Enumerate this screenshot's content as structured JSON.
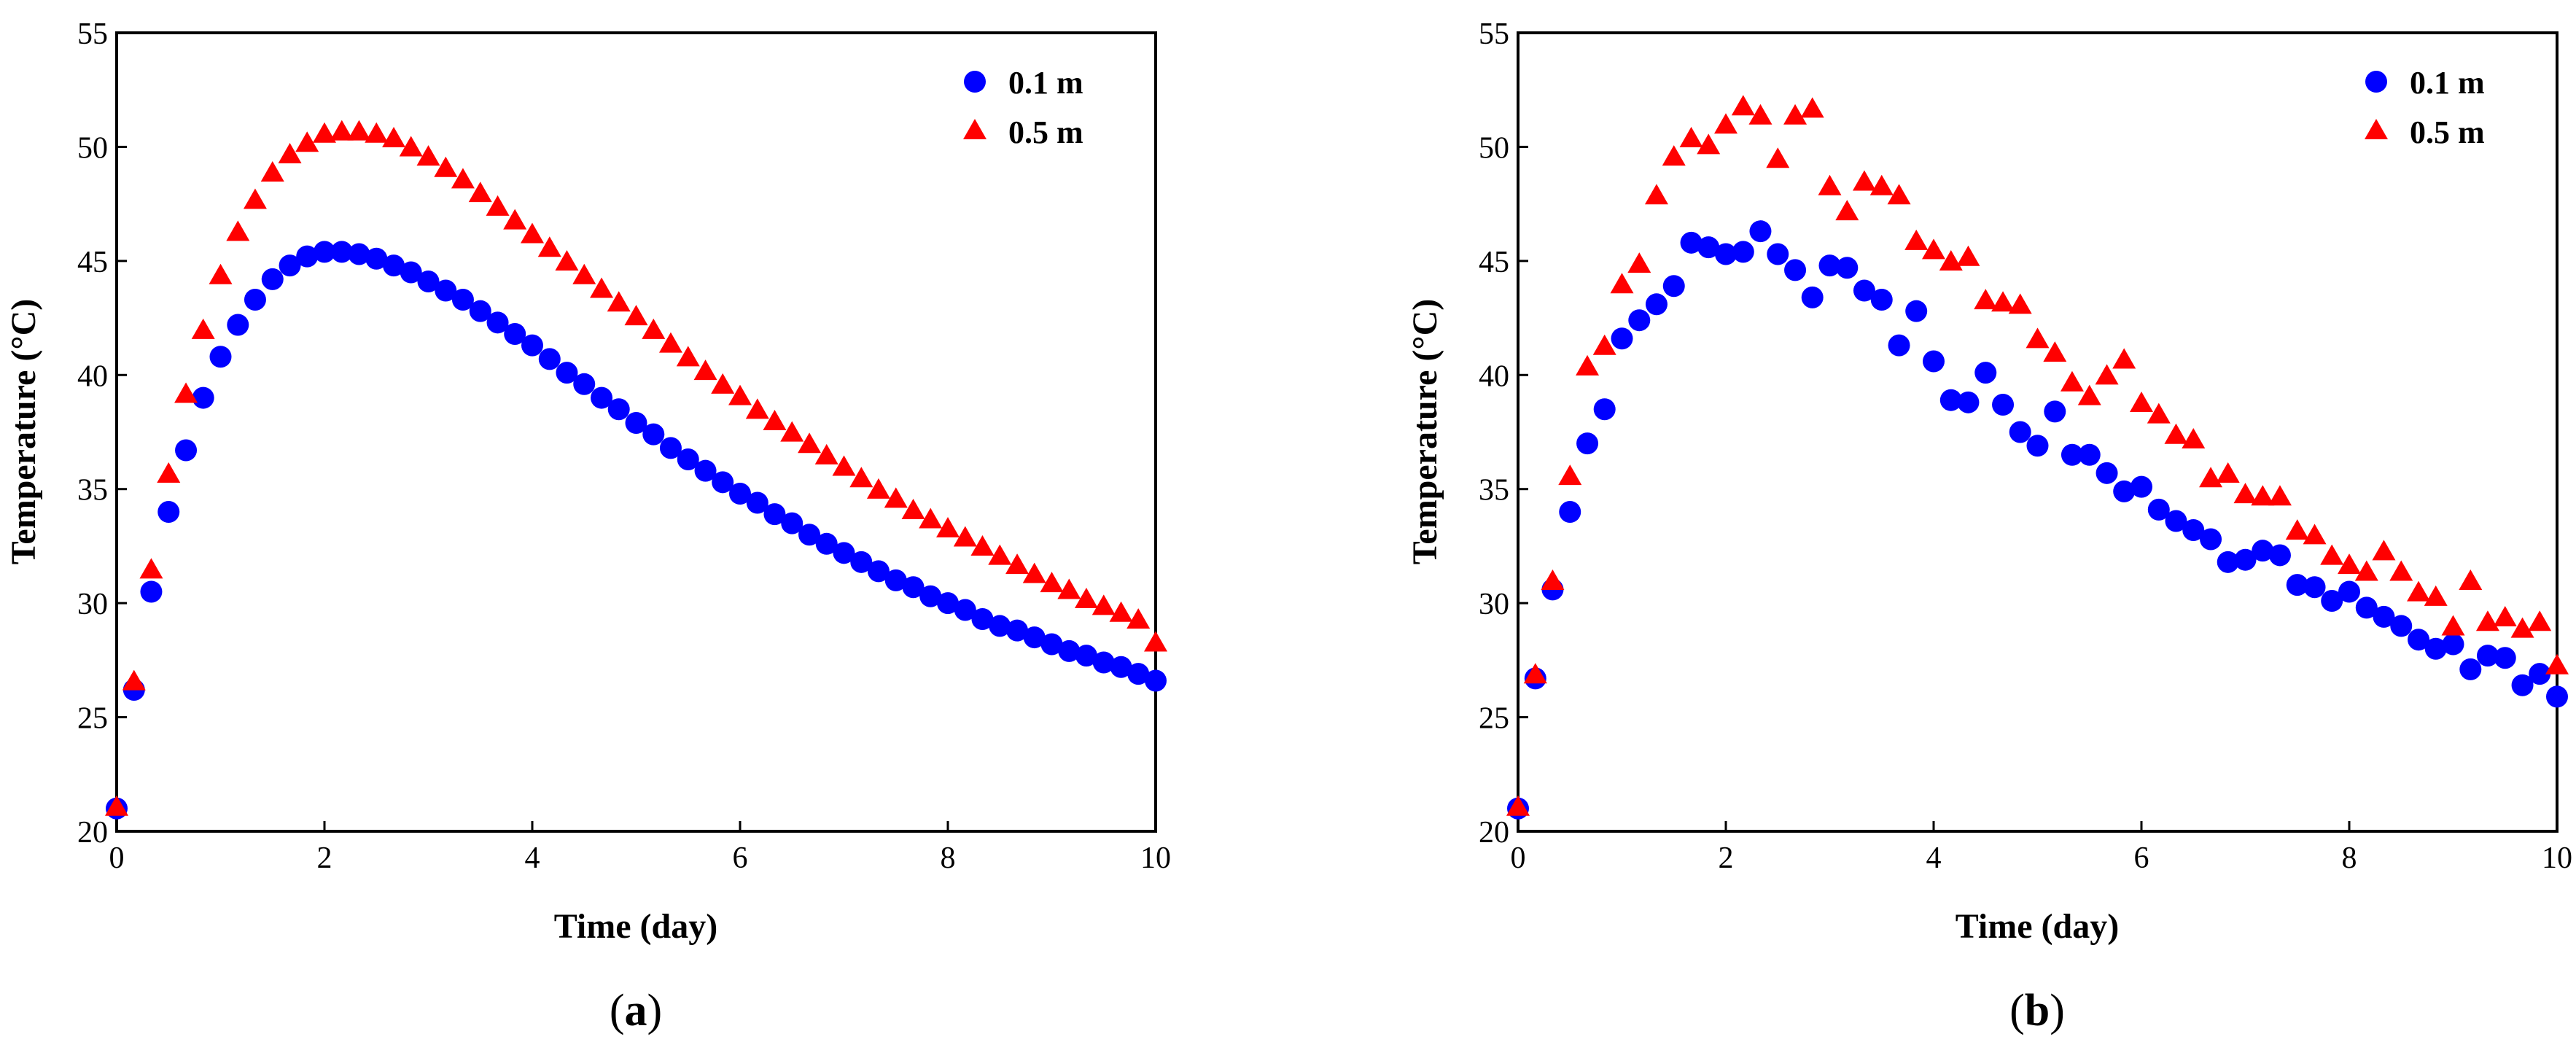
{
  "colors": {
    "series_0": "#0000ff",
    "series_1": "#ff0000",
    "axis": "#000000"
  },
  "chart_data": [
    {
      "type": "scatter",
      "panel_label": "a",
      "xlabel": "Time (day)",
      "ylabel": "Temperature (°C)",
      "xlim": [
        0,
        10
      ],
      "ylim": [
        20,
        55
      ],
      "xticks": [
        0,
        2,
        4,
        6,
        8,
        10
      ],
      "yticks": [
        20,
        25,
        30,
        35,
        40,
        45,
        50,
        55
      ],
      "grid": false,
      "legend_position": "top-right",
      "series": [
        {
          "name": "0.1 m",
          "marker": "circle",
          "color": "#0000ff",
          "x": [
            0,
            0.167,
            0.333,
            0.5,
            0.667,
            0.833,
            1.0,
            1.167,
            1.333,
            1.5,
            1.667,
            1.833,
            2.0,
            2.167,
            2.333,
            2.5,
            2.667,
            2.833,
            3.0,
            3.167,
            3.333,
            3.5,
            3.667,
            3.833,
            4.0,
            4.167,
            4.333,
            4.5,
            4.667,
            4.833,
            5.0,
            5.167,
            5.333,
            5.5,
            5.667,
            5.833,
            6.0,
            6.167,
            6.333,
            6.5,
            6.667,
            6.833,
            7.0,
            7.167,
            7.333,
            7.5,
            7.667,
            7.833,
            8.0,
            8.167,
            8.333,
            8.5,
            8.667,
            8.833,
            9.0,
            9.167,
            9.333,
            9.5,
            9.667,
            9.833,
            10.0
          ],
          "y": [
            21.0,
            26.2,
            30.5,
            34.0,
            36.7,
            39.0,
            40.8,
            42.2,
            43.3,
            44.2,
            44.8,
            45.2,
            45.4,
            45.4,
            45.3,
            45.1,
            44.8,
            44.5,
            44.1,
            43.7,
            43.3,
            42.8,
            42.3,
            41.8,
            41.3,
            40.7,
            40.1,
            39.6,
            39.0,
            38.5,
            37.9,
            37.4,
            36.8,
            36.3,
            35.8,
            35.3,
            34.8,
            34.4,
            33.9,
            33.5,
            33.0,
            32.6,
            32.2,
            31.8,
            31.4,
            31.0,
            30.7,
            30.3,
            30.0,
            29.7,
            29.3,
            29.0,
            28.8,
            28.5,
            28.2,
            27.9,
            27.7,
            27.4,
            27.2,
            26.9,
            26.6
          ]
        },
        {
          "name": "0.5 m",
          "marker": "triangle",
          "color": "#ff0000",
          "x": [
            0,
            0.167,
            0.333,
            0.5,
            0.667,
            0.833,
            1.0,
            1.167,
            1.333,
            1.5,
            1.667,
            1.833,
            2.0,
            2.167,
            2.333,
            2.5,
            2.667,
            2.833,
            3.0,
            3.167,
            3.333,
            3.5,
            3.667,
            3.833,
            4.0,
            4.167,
            4.333,
            4.5,
            4.667,
            4.833,
            5.0,
            5.167,
            5.333,
            5.5,
            5.667,
            5.833,
            6.0,
            6.167,
            6.333,
            6.5,
            6.667,
            6.833,
            7.0,
            7.167,
            7.333,
            7.5,
            7.667,
            7.833,
            8.0,
            8.167,
            8.333,
            8.5,
            8.667,
            8.833,
            9.0,
            9.167,
            9.333,
            9.5,
            9.667,
            9.833,
            10.0
          ],
          "y": [
            21.0,
            26.5,
            31.4,
            35.6,
            39.1,
            41.9,
            44.3,
            46.2,
            47.6,
            48.8,
            49.6,
            50.1,
            50.5,
            50.6,
            50.6,
            50.5,
            50.3,
            49.9,
            49.5,
            49.0,
            48.5,
            47.9,
            47.3,
            46.7,
            46.1,
            45.5,
            44.9,
            44.3,
            43.7,
            43.1,
            42.5,
            41.9,
            41.3,
            40.7,
            40.1,
            39.5,
            39.0,
            38.4,
            37.9,
            37.4,
            36.9,
            36.4,
            35.9,
            35.4,
            34.9,
            34.5,
            34.0,
            33.6,
            33.2,
            32.8,
            32.4,
            32.0,
            31.6,
            31.2,
            30.8,
            30.5,
            30.1,
            29.8,
            29.5,
            29.2,
            28.2
          ]
        }
      ]
    },
    {
      "type": "scatter",
      "panel_label": "b",
      "xlabel": "Time (day)",
      "ylabel": "Temperature (°C)",
      "xlim": [
        0,
        10
      ],
      "ylim": [
        20,
        55
      ],
      "xticks": [
        0,
        2,
        4,
        6,
        8,
        10
      ],
      "yticks": [
        20,
        25,
        30,
        35,
        40,
        45,
        50,
        55
      ],
      "grid": false,
      "legend_position": "top-right",
      "series": [
        {
          "name": "0.1 m",
          "marker": "circle",
          "color": "#0000ff",
          "x": [
            0,
            0.167,
            0.333,
            0.5,
            0.667,
            0.833,
            1.0,
            1.167,
            1.333,
            1.5,
            1.667,
            1.833,
            2.0,
            2.167,
            2.333,
            2.5,
            2.667,
            2.833,
            3.0,
            3.167,
            3.333,
            3.5,
            3.667,
            3.833,
            4.0,
            4.167,
            4.333,
            4.5,
            4.667,
            4.833,
            5.0,
            5.167,
            5.333,
            5.5,
            5.667,
            5.833,
            6.0,
            6.167,
            6.333,
            6.5,
            6.667,
            6.833,
            7.0,
            7.167,
            7.333,
            7.5,
            7.667,
            7.833,
            8.0,
            8.167,
            8.333,
            8.5,
            8.667,
            8.833,
            9.0,
            9.167,
            9.333,
            9.5,
            9.667,
            9.833,
            10.0
          ],
          "y": [
            21.0,
            26.7,
            30.6,
            34.0,
            37.0,
            38.5,
            41.6,
            42.4,
            43.1,
            43.9,
            45.8,
            45.6,
            45.3,
            45.4,
            46.3,
            45.3,
            44.6,
            43.4,
            44.8,
            44.7,
            43.7,
            43.3,
            41.3,
            42.8,
            40.6,
            38.9,
            38.8,
            40.1,
            38.7,
            37.5,
            36.9,
            38.4,
            36.5,
            36.5,
            35.7,
            34.9,
            35.1,
            34.1,
            33.6,
            33.2,
            32.8,
            31.8,
            31.9,
            32.3,
            32.1,
            30.8,
            30.7,
            30.1,
            30.5,
            29.8,
            29.4,
            29.0,
            28.4,
            28.0,
            28.2,
            27.1,
            27.7,
            27.6,
            26.4,
            26.9,
            25.9
          ]
        },
        {
          "name": "0.5 m",
          "marker": "triangle",
          "color": "#ff0000",
          "x": [
            0,
            0.167,
            0.333,
            0.5,
            0.667,
            0.833,
            1.0,
            1.167,
            1.333,
            1.5,
            1.667,
            1.833,
            2.0,
            2.167,
            2.333,
            2.5,
            2.667,
            2.833,
            3.0,
            3.167,
            3.333,
            3.5,
            3.667,
            3.833,
            4.0,
            4.167,
            4.333,
            4.5,
            4.667,
            4.833,
            5.0,
            5.167,
            5.333,
            5.5,
            5.667,
            5.833,
            6.0,
            6.167,
            6.333,
            6.5,
            6.667,
            6.833,
            7.0,
            7.167,
            7.333,
            7.5,
            7.667,
            7.833,
            8.0,
            8.167,
            8.333,
            8.5,
            8.667,
            8.833,
            9.0,
            9.167,
            9.333,
            9.5,
            9.667,
            9.833,
            10.0
          ],
          "y": [
            21.0,
            26.8,
            30.9,
            35.5,
            40.3,
            41.2,
            43.9,
            44.8,
            47.8,
            49.5,
            50.3,
            50.0,
            50.9,
            51.7,
            51.3,
            49.4,
            51.3,
            51.6,
            48.2,
            47.1,
            48.4,
            48.2,
            47.8,
            45.8,
            45.4,
            44.9,
            45.1,
            43.2,
            43.1,
            43.0,
            41.5,
            40.9,
            39.6,
            39.0,
            39.9,
            40.6,
            38.7,
            38.2,
            37.3,
            37.1,
            35.4,
            35.6,
            34.7,
            34.6,
            34.6,
            33.1,
            32.9,
            32.0,
            31.6,
            31.3,
            32.2,
            31.3,
            30.4,
            30.2,
            28.9,
            30.9,
            29.1,
            29.3,
            28.8,
            29.1,
            27.2
          ]
        }
      ]
    }
  ]
}
